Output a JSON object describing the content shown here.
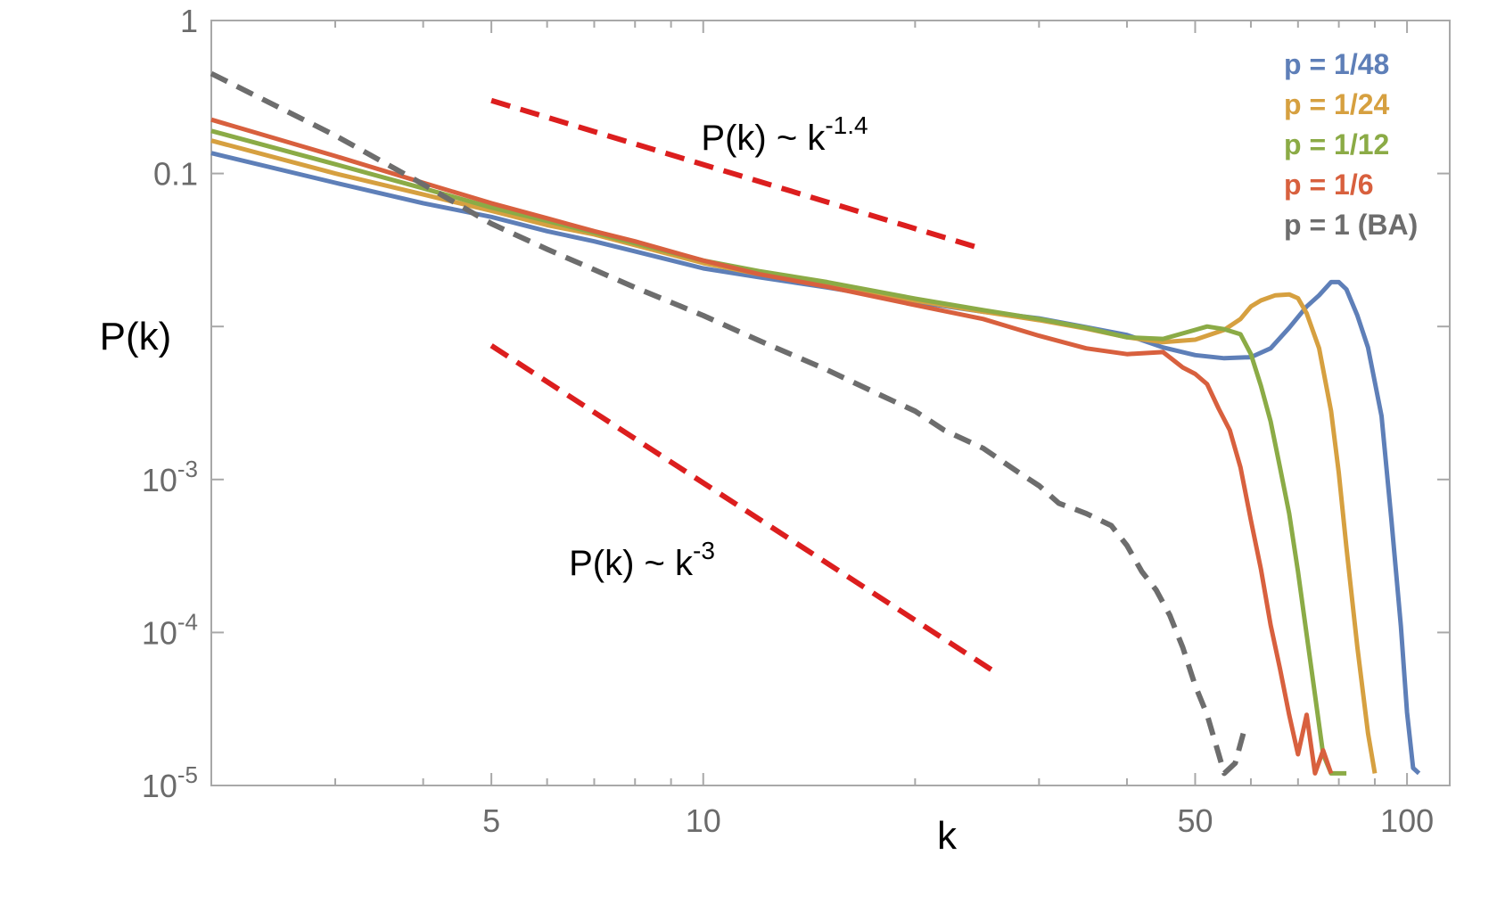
{
  "chart_data": {
    "type": "line",
    "x_scale": "log",
    "y_scale": "log",
    "xlim": [
      2,
      115
    ],
    "ylim": [
      1e-05,
      1
    ],
    "xlabel": "k",
    "ylabel": "P(k)",
    "x_ticks": [
      {
        "value": 5,
        "label": "5"
      },
      {
        "value": 10,
        "label": "10"
      },
      {
        "value": 50,
        "label": "50"
      },
      {
        "value": 100,
        "label": "100"
      }
    ],
    "x_minor_ticks": [
      3,
      4,
      6,
      7,
      8,
      9,
      20,
      30,
      40,
      60,
      70,
      80,
      90
    ],
    "y_ticks": [
      {
        "value": 1,
        "label": "1"
      },
      {
        "value": 0.1,
        "label": "0.1"
      },
      {
        "value": 0.01,
        "label": ""
      },
      {
        "value": 0.001,
        "label": "10",
        "exp": "-3"
      },
      {
        "value": 0.0001,
        "label": "10",
        "exp": "-4"
      },
      {
        "value": 1e-05,
        "label": "10",
        "exp": "-5"
      }
    ],
    "legend_position": "top-right",
    "series": [
      {
        "name": "p = 1/48",
        "color": "#5e7fb8",
        "dash": false,
        "x": [
          2,
          3,
          4,
          5,
          6,
          7,
          8,
          10,
          12,
          15,
          20,
          25,
          30,
          35,
          40,
          45,
          50,
          55,
          60,
          64,
          68,
          72,
          75,
          78,
          80,
          82,
          85,
          88,
          92,
          95,
          98,
          100,
          102,
          104
        ],
        "y": [
          0.136,
          0.087,
          0.064,
          0.052,
          0.042,
          0.036,
          0.031,
          0.024,
          0.021,
          0.018,
          0.0145,
          0.0125,
          0.0113,
          0.0099,
          0.0088,
          0.0073,
          0.0065,
          0.0062,
          0.0063,
          0.0072,
          0.0098,
          0.0135,
          0.016,
          0.0195,
          0.0195,
          0.0175,
          0.0118,
          0.0073,
          0.0026,
          0.00055,
          0.00011,
          3e-05,
          1.3e-05,
          1.2e-05
        ]
      },
      {
        "name": "p = 1/24",
        "color": "#d6a040",
        "dash": false,
        "x": [
          2,
          3,
          4,
          5,
          6,
          7,
          8,
          10,
          12,
          15,
          20,
          25,
          30,
          35,
          40,
          45,
          50,
          55,
          58,
          60,
          62,
          65,
          68,
          70,
          72,
          75,
          78,
          80,
          82,
          85,
          88,
          90
        ],
        "y": [
          0.164,
          0.1,
          0.073,
          0.057,
          0.046,
          0.04,
          0.034,
          0.026,
          0.022,
          0.0185,
          0.0148,
          0.0125,
          0.011,
          0.0097,
          0.0085,
          0.0079,
          0.0082,
          0.0095,
          0.0112,
          0.0135,
          0.0148,
          0.016,
          0.0162,
          0.0153,
          0.0122,
          0.0072,
          0.0028,
          0.0011,
          0.00036,
          8e-05,
          2.2e-05,
          1.2e-05
        ]
      },
      {
        "name": "p = 1/12",
        "color": "#8bab46",
        "dash": false,
        "x": [
          2,
          3,
          4,
          5,
          6,
          7,
          8,
          10,
          12,
          15,
          20,
          25,
          30,
          35,
          40,
          45,
          50,
          52,
          55,
          58,
          60,
          62,
          64,
          66,
          68,
          70,
          72,
          74,
          76,
          78,
          80,
          82
        ],
        "y": [
          0.19,
          0.115,
          0.08,
          0.06,
          0.049,
          0.041,
          0.035,
          0.027,
          0.023,
          0.0195,
          0.0152,
          0.0128,
          0.0112,
          0.0098,
          0.0085,
          0.0083,
          0.0095,
          0.01,
          0.0096,
          0.0089,
          0.0066,
          0.0041,
          0.0024,
          0.0012,
          0.0006,
          0.00025,
          9.7e-05,
          3.9e-05,
          1.6e-05,
          1.2e-05,
          1.2e-05,
          1.2e-05
        ]
      },
      {
        "name": "p = 1/6",
        "color": "#d8603e",
        "dash": false,
        "x": [
          2,
          3,
          4,
          5,
          6,
          7,
          8,
          10,
          12,
          15,
          20,
          25,
          30,
          35,
          40,
          45,
          48,
          50,
          52,
          54,
          56,
          58,
          60,
          62,
          64,
          66,
          68,
          70,
          72,
          74,
          76,
          78
        ],
        "y": [
          0.225,
          0.13,
          0.087,
          0.064,
          0.051,
          0.042,
          0.036,
          0.027,
          0.022,
          0.0182,
          0.0138,
          0.0112,
          0.0087,
          0.0072,
          0.0066,
          0.0068,
          0.0054,
          0.0049,
          0.0042,
          0.0029,
          0.0021,
          0.0012,
          0.00054,
          0.00026,
          0.000112,
          5.8e-05,
          2.9e-05,
          1.6e-05,
          2.9e-05,
          1.2e-05,
          1.7e-05,
          1.2e-05
        ]
      },
      {
        "name": "p = 1 (BA)",
        "color": "#6d6d6d",
        "dash": true,
        "x": [
          2,
          3,
          4,
          5,
          6,
          7,
          8,
          10,
          12,
          15,
          18,
          20,
          22,
          25,
          28,
          30,
          32,
          35,
          38,
          40,
          42,
          44,
          46,
          48,
          50,
          52,
          54,
          55,
          57,
          59
        ],
        "y": [
          0.45,
          0.177,
          0.085,
          0.047,
          0.032,
          0.0235,
          0.018,
          0.0118,
          0.0081,
          0.0052,
          0.0035,
          0.0028,
          0.0021,
          0.0016,
          0.00112,
          0.00091,
          0.0007,
          0.0006,
          0.0005,
          0.00037,
          0.00025,
          0.00019,
          0.00013,
          8e-05,
          4.5e-05,
          2.9e-05,
          1.6e-05,
          1.2e-05,
          1.4e-05,
          2.5e-05
        ]
      }
    ],
    "reference_lines": [
      {
        "label": "P(k) ~ k",
        "exp": "-1.4",
        "color": "#dc1e1e",
        "k_from": 5,
        "k_to": 25,
        "p_from": 0.3,
        "p_to": 0.032
      },
      {
        "label": "P(k) ~ k",
        "exp": "-3",
        "color": "#dc1e1e",
        "k_from": 5,
        "k_to": 26,
        "p_from": 0.0075,
        "p_to": 5.5e-05
      }
    ]
  }
}
